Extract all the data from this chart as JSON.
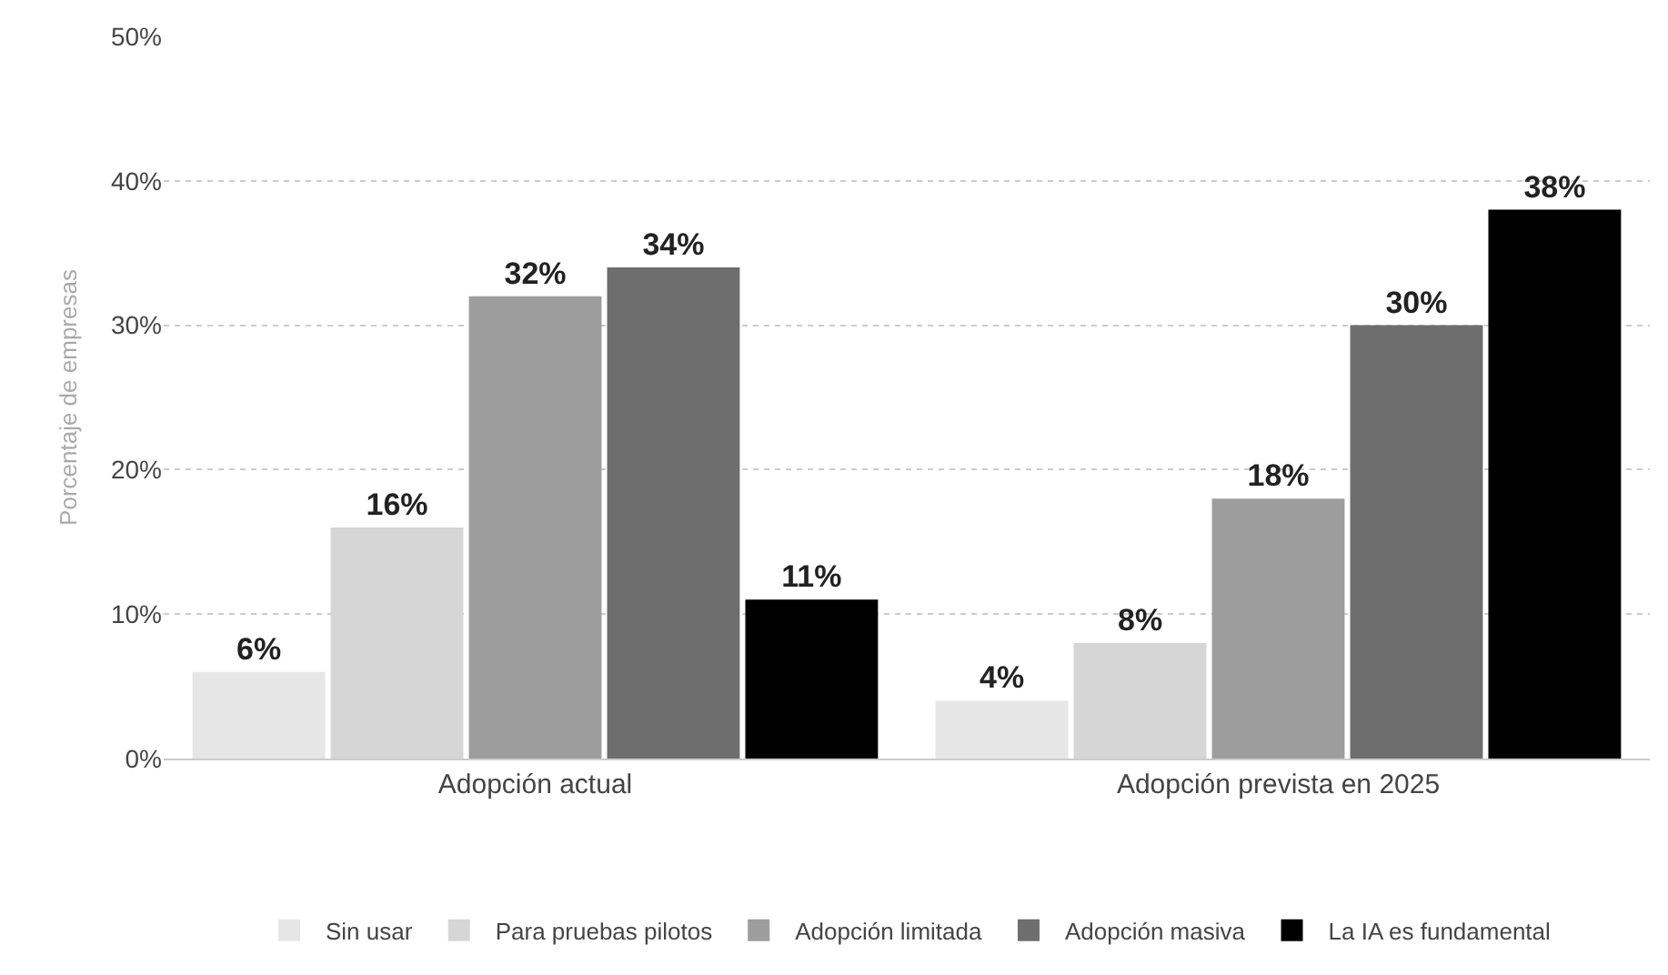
{
  "chart_data": {
    "type": "bar",
    "ylabel": "Porcentaje de empresas",
    "categories": [
      "Adopción actual",
      "Adopción prevista en 2025"
    ],
    "series": [
      {
        "name": "Sin usar",
        "color": "#e6e6e6",
        "values": [
          6,
          4
        ],
        "value_labels": [
          "6%",
          "4%"
        ]
      },
      {
        "name": "Para pruebas pilotos",
        "color": "#d6d6d6",
        "values": [
          16,
          8
        ],
        "value_labels": [
          "16%",
          "8%"
        ]
      },
      {
        "name": "Adopción limitada",
        "color": "#9d9d9d",
        "values": [
          32,
          18
        ],
        "value_labels": [
          "32%",
          "18%"
        ]
      },
      {
        "name": "Adopción masiva",
        "color": "#6e6e6e",
        "values": [
          34,
          30
        ],
        "value_labels": [
          "34%",
          "30%"
        ]
      },
      {
        "name": "La IA es fundamental",
        "color": "#000000",
        "values": [
          11,
          38
        ],
        "value_labels": [
          "11%",
          "38%"
        ]
      }
    ],
    "ylim": [
      0,
      50
    ],
    "yticks": [
      {
        "value": 0,
        "label": "0%"
      },
      {
        "value": 10,
        "label": "10%"
      },
      {
        "value": 20,
        "label": "20%"
      },
      {
        "value": 30,
        "label": "30%"
      },
      {
        "value": 40,
        "label": "40%"
      },
      {
        "value": 50,
        "label": "50%"
      }
    ],
    "grid": "y",
    "legend": "bottom"
  }
}
